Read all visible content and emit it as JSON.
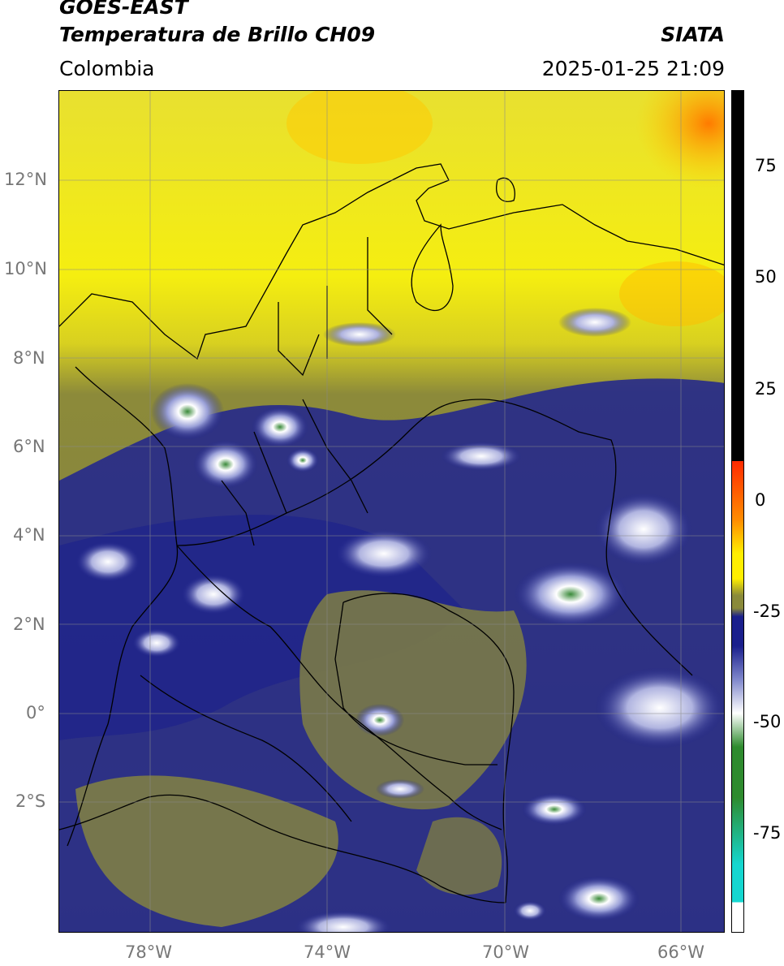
{
  "header": {
    "line1": "GOES-EAST",
    "line2": "Temperatura de Brillo CH09",
    "org": "SIATA",
    "region": "Colombia",
    "datetime": "2025-01-25 21:09"
  },
  "axes": {
    "lat_labels": [
      "12°N",
      "10°N",
      "8°N",
      "6°N",
      "4°N",
      "2°N",
      "0°",
      "2°S"
    ],
    "lon_labels": [
      "78°W",
      "74°W",
      "70°W",
      "66°W"
    ]
  },
  "colorbar": {
    "ticks": [
      "75",
      "50",
      "25",
      "0",
      "-25",
      "-50",
      "-75"
    ],
    "colors": {
      "black": "#000000",
      "red": "#ff2a00",
      "orange": "#ff8c00",
      "yellow": "#ffee00",
      "olive": "#8a8a3a",
      "navy": "#1a1f8c",
      "white": "#ffffff",
      "green": "#2e8b2e",
      "teal": "#15d7d0"
    }
  }
}
